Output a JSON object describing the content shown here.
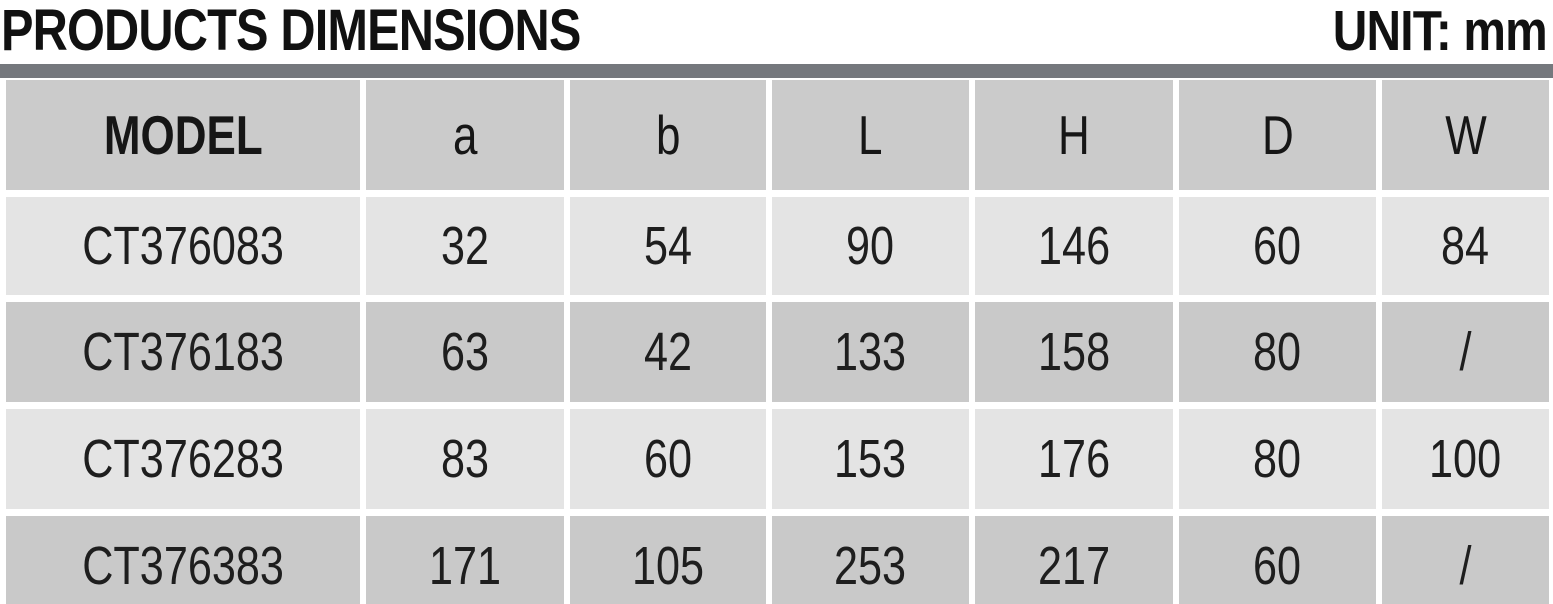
{
  "page": {
    "title": "PRODUCTS DIMENSIONS",
    "unit_label": "UNIT: mm"
  },
  "colors": {
    "header_bg": "#cbcbcb",
    "row_light_bg": "#e4e4e4",
    "row_dark_bg": "#c9c9c9",
    "divider_bar": "#75787d",
    "title_text": "#111111",
    "cell_text": "#1e1e1e",
    "gap_white": "#ffffff"
  },
  "table": {
    "columns": [
      "MODEL",
      "a",
      "b",
      "L",
      "H",
      "D",
      "W"
    ],
    "rows": [
      [
        "CT376083",
        "32",
        "54",
        "90",
        "146",
        "60",
        "84"
      ],
      [
        "CT376183",
        "63",
        "42",
        "133",
        "158",
        "80",
        "/"
      ],
      [
        "CT376283",
        "83",
        "60",
        "153",
        "176",
        "80",
        "100"
      ],
      [
        "CT376383",
        "171",
        "105",
        "253",
        "217",
        "60",
        "/"
      ]
    ]
  },
  "chart_data": {
    "type": "table",
    "title": "PRODUCTS DIMENSIONS",
    "unit": "mm",
    "columns": [
      "MODEL",
      "a",
      "b",
      "L",
      "H",
      "D",
      "W"
    ],
    "rows": [
      [
        "CT376083",
        "32",
        "54",
        "90",
        "146",
        "60",
        "84"
      ],
      [
        "CT376183",
        "63",
        "42",
        "133",
        "158",
        "80",
        "/"
      ],
      [
        "CT376283",
        "83",
        "60",
        "153",
        "176",
        "80",
        "100"
      ],
      [
        "CT376383",
        "171",
        "105",
        "253",
        "217",
        "60",
        "/"
      ]
    ]
  }
}
